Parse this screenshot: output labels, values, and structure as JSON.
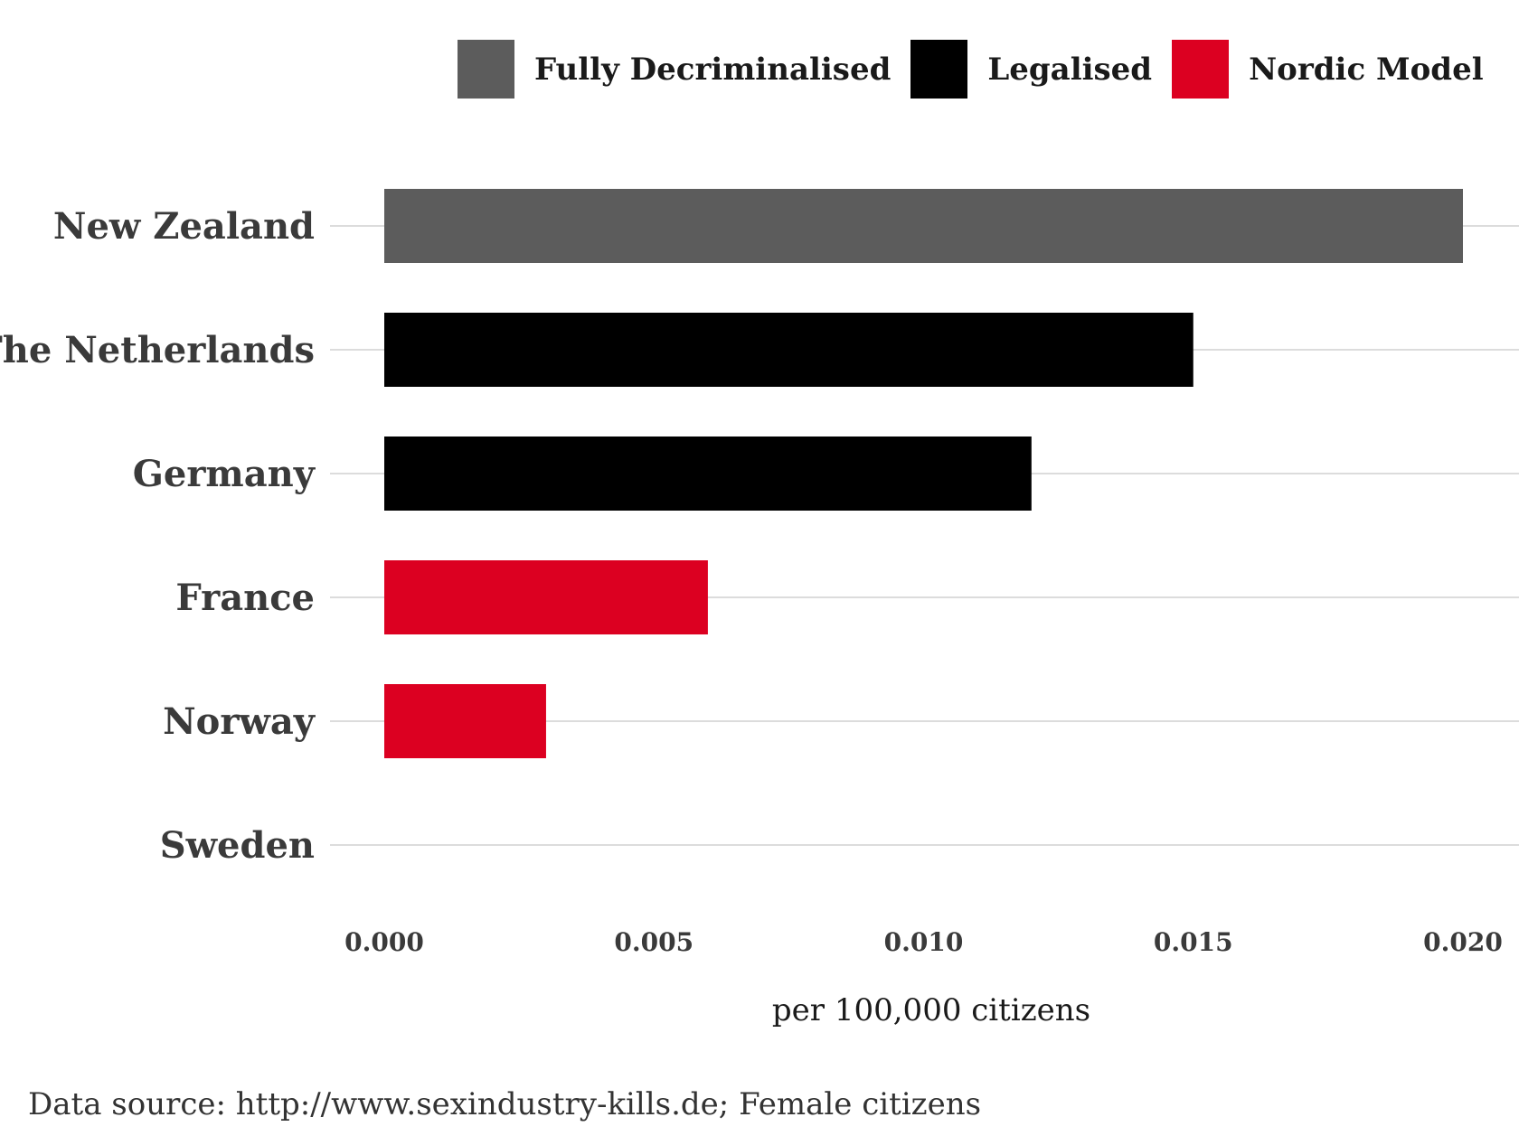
{
  "chart_data": {
    "type": "bar",
    "orientation": "horizontal",
    "categories": [
      "New Zealand",
      "The Netherlands",
      "Germany",
      "France",
      "Norway",
      "Sweden"
    ],
    "values": [
      0.02,
      0.015,
      0.012,
      0.006,
      0.003,
      0.0
    ],
    "groups": [
      "Fully Decriminalised",
      "Legalised",
      "Legalised",
      "Nordic Model",
      "Nordic Model",
      "Nordic Model"
    ],
    "legend": [
      {
        "name": "Fully Decriminalised",
        "color": "#5c5c5c"
      },
      {
        "name": "Legalised",
        "color": "#000000"
      },
      {
        "name": "Nordic Model",
        "color": "#dc0021"
      }
    ],
    "xlabel": "per 100,000 citizens",
    "ylabel": "",
    "xlim": [
      0.0,
      0.02
    ],
    "xticks": [
      "0.000",
      "0.005",
      "0.010",
      "0.015",
      "0.020"
    ],
    "grid": "horizontal",
    "legend_position": "top",
    "caption": "Data source: http://www.sexindustry-kills.de; Female citizens"
  }
}
